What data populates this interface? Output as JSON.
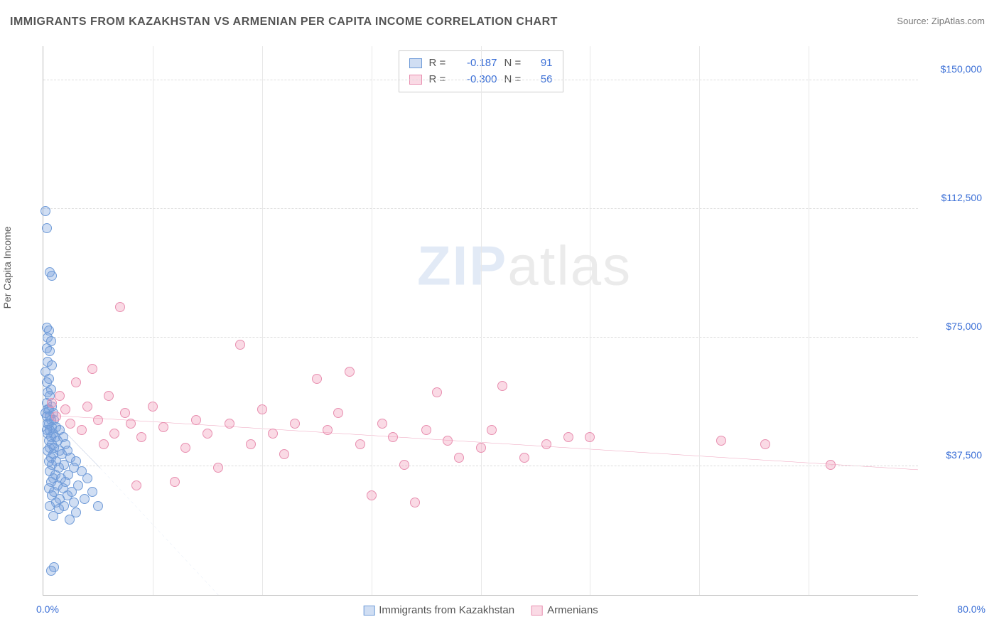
{
  "title": "IMMIGRANTS FROM KAZAKHSTAN VS ARMENIAN PER CAPITA INCOME CORRELATION CHART",
  "source_label": "Source:",
  "source_name": "ZipAtlas.com",
  "ylabel": "Per Capita Income",
  "watermark_a": "ZIP",
  "watermark_b": "atlas",
  "chart": {
    "type": "scatter",
    "xlim": [
      0,
      80
    ],
    "ylim": [
      0,
      160000
    ],
    "x_tick_min": "0.0%",
    "x_tick_max": "80.0%",
    "y_ticks": [
      {
        "v": 37500,
        "label": "$37,500"
      },
      {
        "v": 75000,
        "label": "$75,000"
      },
      {
        "v": 112500,
        "label": "$112,500"
      },
      {
        "v": 150000,
        "label": "$150,000"
      }
    ],
    "x_grid": [
      10,
      20,
      30,
      40,
      50,
      60,
      70
    ],
    "background_color": "#ffffff",
    "grid_color": "#dddddd",
    "axis_color": "#bbbbbb",
    "tick_label_color": "#3b6fd6",
    "marker_radius": 7,
    "marker_stroke_width": 1.5,
    "series": [
      {
        "key": "kaz",
        "label": "Immigrants from Kazakhstan",
        "fill": "rgba(120,160,220,0.35)",
        "stroke": "#6f9bd8",
        "r_label": "R =",
        "r_value": "-0.187",
        "n_label": "N =",
        "n_value": "91",
        "trend": {
          "x1": 0,
          "y1": 54000,
          "x2": 5.2,
          "y2": 37000,
          "color": "#2c54a0",
          "width": 2,
          "solid": true
        },
        "trend_ext": {
          "x1": 5.2,
          "y1": 37000,
          "x2": 16,
          "y2": 0,
          "color": "#6f9bd8",
          "width": 1,
          "solid": false
        },
        "points": [
          [
            0.2,
            112000
          ],
          [
            0.3,
            107000
          ],
          [
            0.6,
            94000
          ],
          [
            0.8,
            93000
          ],
          [
            0.3,
            78000
          ],
          [
            0.5,
            77000
          ],
          [
            0.4,
            75000
          ],
          [
            0.7,
            74000
          ],
          [
            0.3,
            72000
          ],
          [
            0.6,
            71000
          ],
          [
            0.4,
            68000
          ],
          [
            0.8,
            67000
          ],
          [
            0.2,
            65000
          ],
          [
            0.5,
            63000
          ],
          [
            0.3,
            62000
          ],
          [
            0.7,
            60000
          ],
          [
            0.4,
            59000
          ],
          [
            0.6,
            58000
          ],
          [
            0.3,
            56000
          ],
          [
            0.8,
            55000
          ],
          [
            0.5,
            54000
          ],
          [
            0.4,
            54000
          ],
          [
            0.2,
            53000
          ],
          [
            0.9,
            53000
          ],
          [
            0.6,
            52000
          ],
          [
            0.3,
            52000
          ],
          [
            0.7,
            51000
          ],
          [
            1.0,
            51000
          ],
          [
            0.5,
            50000
          ],
          [
            0.4,
            50000
          ],
          [
            0.8,
            49000
          ],
          [
            1.2,
            49000
          ],
          [
            0.3,
            48000
          ],
          [
            0.6,
            48000
          ],
          [
            1.5,
            48000
          ],
          [
            0.9,
            47000
          ],
          [
            0.4,
            47000
          ],
          [
            1.1,
            46000
          ],
          [
            0.7,
            46000
          ],
          [
            1.8,
            46000
          ],
          [
            0.5,
            45000
          ],
          [
            1.3,
            45000
          ],
          [
            0.8,
            44000
          ],
          [
            2.0,
            44000
          ],
          [
            0.6,
            43000
          ],
          [
            1.0,
            43000
          ],
          [
            1.5,
            42000
          ],
          [
            0.4,
            42000
          ],
          [
            2.2,
            42000
          ],
          [
            0.9,
            41000
          ],
          [
            1.7,
            41000
          ],
          [
            0.7,
            40000
          ],
          [
            2.5,
            40000
          ],
          [
            1.2,
            39000
          ],
          [
            0.5,
            39000
          ],
          [
            3.0,
            39000
          ],
          [
            1.9,
            38000
          ],
          [
            0.8,
            38000
          ],
          [
            1.4,
            37000
          ],
          [
            2.8,
            37000
          ],
          [
            0.6,
            36000
          ],
          [
            3.5,
            36000
          ],
          [
            1.1,
            35000
          ],
          [
            2.3,
            35000
          ],
          [
            0.9,
            34000
          ],
          [
            1.6,
            34000
          ],
          [
            4.0,
            34000
          ],
          [
            0.7,
            33000
          ],
          [
            2.0,
            33000
          ],
          [
            1.3,
            32000
          ],
          [
            3.2,
            32000
          ],
          [
            0.5,
            31000
          ],
          [
            1.8,
            31000
          ],
          [
            2.6,
            30000
          ],
          [
            1.0,
            30000
          ],
          [
            4.5,
            30000
          ],
          [
            0.8,
            29000
          ],
          [
            2.2,
            29000
          ],
          [
            1.5,
            28000
          ],
          [
            3.8,
            28000
          ],
          [
            1.2,
            27000
          ],
          [
            2.8,
            27000
          ],
          [
            0.6,
            26000
          ],
          [
            1.9,
            26000
          ],
          [
            5.0,
            26000
          ],
          [
            1.4,
            25000
          ],
          [
            3.0,
            24000
          ],
          [
            0.9,
            23000
          ],
          [
            2.4,
            22000
          ],
          [
            1.0,
            8000
          ],
          [
            0.7,
            7000
          ]
        ]
      },
      {
        "key": "arm",
        "label": "Armenians",
        "fill": "rgba(240,150,180,0.35)",
        "stroke": "#e88fb0",
        "r_label": "R =",
        "r_value": "-0.300",
        "n_label": "N =",
        "n_value": "56",
        "trend": {
          "x1": 0,
          "y1": 52500,
          "x2": 80,
          "y2": 36500,
          "color": "#e05a8a",
          "width": 2.5,
          "solid": true
        },
        "points": [
          [
            0.8,
            56000
          ],
          [
            1.2,
            52000
          ],
          [
            1.5,
            58000
          ],
          [
            2.0,
            54000
          ],
          [
            2.5,
            50000
          ],
          [
            3.0,
            62000
          ],
          [
            3.5,
            48000
          ],
          [
            4.0,
            55000
          ],
          [
            4.5,
            66000
          ],
          [
            5.0,
            51000
          ],
          [
            5.5,
            44000
          ],
          [
            6.0,
            58000
          ],
          [
            6.5,
            47000
          ],
          [
            7.0,
            84000
          ],
          [
            7.5,
            53000
          ],
          [
            8.0,
            50000
          ],
          [
            8.5,
            32000
          ],
          [
            9.0,
            46000
          ],
          [
            10.0,
            55000
          ],
          [
            11.0,
            49000
          ],
          [
            12.0,
            33000
          ],
          [
            13.0,
            43000
          ],
          [
            14.0,
            51000
          ],
          [
            15.0,
            47000
          ],
          [
            16.0,
            37000
          ],
          [
            17.0,
            50000
          ],
          [
            18.0,
            73000
          ],
          [
            19.0,
            44000
          ],
          [
            20.0,
            54000
          ],
          [
            21.0,
            47000
          ],
          [
            22.0,
            41000
          ],
          [
            23.0,
            50000
          ],
          [
            25.0,
            63000
          ],
          [
            26.0,
            48000
          ],
          [
            27.0,
            53000
          ],
          [
            28.0,
            65000
          ],
          [
            29.0,
            44000
          ],
          [
            30.0,
            29000
          ],
          [
            31.0,
            50000
          ],
          [
            32.0,
            46000
          ],
          [
            33.0,
            38000
          ],
          [
            34.0,
            27000
          ],
          [
            35.0,
            48000
          ],
          [
            36.0,
            59000
          ],
          [
            37.0,
            45000
          ],
          [
            38.0,
            40000
          ],
          [
            40.0,
            43000
          ],
          [
            41.0,
            48000
          ],
          [
            42.0,
            61000
          ],
          [
            44.0,
            40000
          ],
          [
            46.0,
            44000
          ],
          [
            48.0,
            46000
          ],
          [
            62.0,
            45000
          ],
          [
            66.0,
            44000
          ],
          [
            72.0,
            38000
          ],
          [
            50.0,
            46000
          ]
        ]
      }
    ]
  }
}
